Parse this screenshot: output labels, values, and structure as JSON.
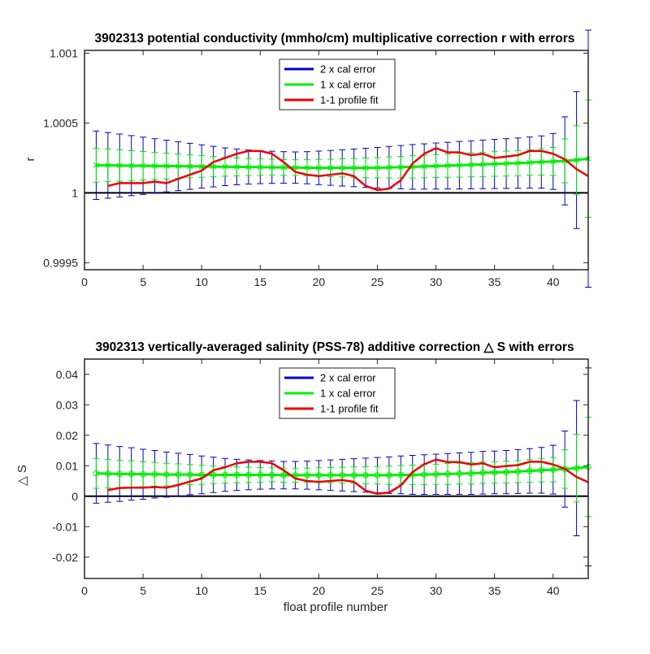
{
  "chart_data": [
    {
      "type": "line",
      "title": "3902313 potential conductivity (mmho/cm) multiplicative correction r with errors",
      "xlabel": "",
      "ylabel": "r",
      "xlim": [
        0,
        43
      ],
      "ylim": [
        0.99945,
        1.00102
      ],
      "xticks": [
        0,
        5,
        10,
        15,
        20,
        25,
        30,
        35,
        40
      ],
      "yticks": [
        0.9995,
        1,
        1.0005,
        1.001
      ],
      "ytick_labels": [
        "0.9995",
        "1",
        "1.0005",
        "1.001"
      ],
      "reference_line": 1,
      "legend_position": "top-center",
      "colors": {
        "cal2": "#0000cc",
        "cal1": "#00ee00",
        "fit": "#ee0000",
        "ref": "#000000"
      },
      "x": [
        1,
        2,
        3,
        4,
        5,
        6,
        7,
        8,
        9,
        10,
        11,
        12,
        13,
        14,
        15,
        16,
        17,
        18,
        19,
        20,
        21,
        22,
        23,
        24,
        25,
        26,
        27,
        28,
        29,
        30,
        31,
        32,
        33,
        34,
        35,
        36,
        37,
        38,
        39,
        40,
        41,
        42,
        43
      ],
      "series": [
        {
          "name": "2 x cal error",
          "center": [
            1.000198,
            1.000197,
            1.000196,
            1.000195,
            1.000194,
            1.000193,
            1.000192,
            1.000191,
            1.00019,
            1.000189,
            1.000188,
            1.000187,
            1.000186,
            1.000185,
            1.000184,
            1.000183,
            1.000182,
            1.000181,
            1.00018,
            1.000179,
            1.000179,
            1.000179,
            1.000179,
            1.000179,
            1.00018,
            1.000182,
            1.000184,
            1.000186,
            1.000189,
            1.000192,
            1.000195,
            1.000198,
            1.000201,
            1.000204,
            1.000207,
            1.00021,
            1.000213,
            1.000217,
            1.000221,
            1.000225,
            1.000229,
            1.000235,
            1.000245
          ],
          "error": [
            0.000245,
            0.000235,
            0.000225,
            0.000215,
            0.000205,
            0.000195,
            0.000185,
            0.000175,
            0.000165,
            0.000155,
            0.000145,
            0.000135,
            0.000128,
            0.000122,
            0.000118,
            0.000115,
            0.000113,
            0.000112,
            0.000115,
            0.00012,
            0.000125,
            0.00013,
            0.000135,
            0.00014,
            0.000145,
            0.00015,
            0.000155,
            0.00016,
            0.000162,
            0.000165,
            0.000167,
            0.00017,
            0.000172,
            0.000174,
            0.000176,
            0.000178,
            0.00018,
            0.000183,
            0.000187,
            0.0002,
            0.000315,
            0.00049,
            0.00092
          ]
        },
        {
          "name": "1 x cal error",
          "values": [
            1.000198,
            1.000197,
            1.000196,
            1.000195,
            1.000194,
            1.000193,
            1.000192,
            1.000191,
            1.00019,
            1.000189,
            1.000188,
            1.000187,
            1.000186,
            1.000185,
            1.000184,
            1.000183,
            1.000182,
            1.000181,
            1.00018,
            1.000179,
            1.000179,
            1.000179,
            1.000179,
            1.000179,
            1.00018,
            1.000182,
            1.000184,
            1.000186,
            1.000189,
            1.000192,
            1.000195,
            1.000198,
            1.000201,
            1.000204,
            1.000207,
            1.00021,
            1.000213,
            1.000217,
            1.000221,
            1.000225,
            1.000229,
            1.000235,
            1.000245
          ],
          "error": [
            0.000122,
            0.000117,
            0.000112,
            0.000107,
            0.000102,
            9.7e-05,
            9.2e-05,
            8.7e-05,
            8.2e-05,
            7.7e-05,
            7.2e-05,
            6.7e-05,
            6.4e-05,
            6.1e-05,
            5.9e-05,
            5.7e-05,
            5.6e-05,
            5.6e-05,
            5.7e-05,
            6e-05,
            6.2e-05,
            6.5e-05,
            6.7e-05,
            7e-05,
            7.2e-05,
            7.5e-05,
            7.7e-05,
            8e-05,
            8.1e-05,
            8.2e-05,
            8.3e-05,
            8.5e-05,
            8.6e-05,
            8.7e-05,
            8.8e-05,
            8.9e-05,
            9e-05,
            9.1e-05,
            9.3e-05,
            0.0001,
            0.000157,
            0.000245,
            0.00042
          ]
        },
        {
          "name": "1-1 profile fit",
          "x": [
            2,
            3,
            4,
            5,
            6,
            7,
            8,
            9,
            10,
            11,
            12,
            13,
            14,
            15,
            16,
            17,
            18,
            19,
            20,
            21,
            22,
            23,
            24,
            25,
            26,
            27,
            28,
            29,
            30,
            31,
            32,
            33,
            34,
            35,
            36,
            37,
            38,
            39,
            40,
            41,
            42,
            43
          ],
          "values": [
            1.00005,
            1.00007,
            1.00007,
            1.00007,
            1.00008,
            1.00007,
            1.0001,
            1.00013,
            1.00016,
            1.00022,
            1.00025,
            1.00028,
            1.0003,
            1.0003,
            1.00028,
            1.00022,
            1.00015,
            1.00013,
            1.00012,
            1.00013,
            1.00014,
            1.00012,
            1.00005,
            1.00002,
            1.00003,
            1.00009,
            1.00021,
            1.00028,
            1.00032,
            1.00029,
            1.00029,
            1.00027,
            1.00028,
            1.00025,
            1.00026,
            1.00027,
            1.0003,
            1.0003,
            1.00028,
            1.00024,
            1.00017,
            1.00012
          ]
        }
      ]
    },
    {
      "type": "line",
      "title": "3902313 vertically-averaged salinity (PSS-78) additive correction △ S with errors",
      "xlabel": "float profile number",
      "ylabel": "△ S",
      "xlim": [
        0,
        43
      ],
      "ylim": [
        -0.027,
        0.045
      ],
      "xticks": [
        0,
        5,
        10,
        15,
        20,
        25,
        30,
        35,
        40
      ],
      "yticks": [
        -0.02,
        -0.01,
        0,
        0.01,
        0.02,
        0.03,
        0.04
      ],
      "ytick_labels": [
        "-0.02",
        "-0.01",
        "0",
        "0.01",
        "0.02",
        "0.03",
        "0.04"
      ],
      "reference_line": 0,
      "legend_position": "top-center",
      "colors": {
        "cal2": "#0000cc",
        "cal1": "#00ee00",
        "fit": "#ee0000",
        "ref": "#000000"
      },
      "x": [
        1,
        2,
        3,
        4,
        5,
        6,
        7,
        8,
        9,
        10,
        11,
        12,
        13,
        14,
        15,
        16,
        17,
        18,
        19,
        20,
        21,
        22,
        23,
        24,
        25,
        26,
        27,
        28,
        29,
        30,
        31,
        32,
        33,
        34,
        35,
        36,
        37,
        38,
        39,
        40,
        41,
        42,
        43
      ],
      "series": [
        {
          "name": "2 x cal error",
          "center": [
            0.0075,
            0.0074,
            0.0073,
            0.0073,
            0.0072,
            0.0072,
            0.0071,
            0.0071,
            0.0071,
            0.007,
            0.007,
            0.007,
            0.007,
            0.007,
            0.007,
            0.007,
            0.0069,
            0.0069,
            0.0069,
            0.0069,
            0.0069,
            0.0069,
            0.0069,
            0.0069,
            0.0069,
            0.0069,
            0.007,
            0.007,
            0.0071,
            0.0072,
            0.0073,
            0.0074,
            0.0075,
            0.0077,
            0.0078,
            0.0079,
            0.0081,
            0.0083,
            0.0085,
            0.0087,
            0.0089,
            0.0092,
            0.0096
          ],
          "error": [
            0.0098,
            0.0094,
            0.009,
            0.0086,
            0.0082,
            0.0078,
            0.0074,
            0.007,
            0.0066,
            0.0062,
            0.0058,
            0.0054,
            0.0051,
            0.0049,
            0.0047,
            0.0046,
            0.0045,
            0.0045,
            0.0046,
            0.0048,
            0.005,
            0.0052,
            0.0054,
            0.0056,
            0.0058,
            0.006,
            0.0062,
            0.0064,
            0.0065,
            0.0066,
            0.0067,
            0.0068,
            0.0069,
            0.007,
            0.007,
            0.0071,
            0.0072,
            0.0073,
            0.0075,
            0.008,
            0.0125,
            0.0222,
            0.0325
          ]
        },
        {
          "name": "1 x cal error",
          "values": [
            0.0075,
            0.0074,
            0.0073,
            0.0073,
            0.0072,
            0.0072,
            0.0071,
            0.0071,
            0.0071,
            0.007,
            0.007,
            0.007,
            0.007,
            0.007,
            0.007,
            0.007,
            0.0069,
            0.0069,
            0.0069,
            0.0069,
            0.0069,
            0.0069,
            0.0069,
            0.0069,
            0.0069,
            0.0069,
            0.007,
            0.007,
            0.0071,
            0.0072,
            0.0073,
            0.0074,
            0.0075,
            0.0077,
            0.0078,
            0.0079,
            0.0081,
            0.0083,
            0.0085,
            0.0087,
            0.0089,
            0.0092,
            0.0096
          ],
          "error": [
            0.0049,
            0.0047,
            0.0045,
            0.0043,
            0.0041,
            0.0039,
            0.0037,
            0.0035,
            0.0033,
            0.0031,
            0.0029,
            0.0027,
            0.0026,
            0.0025,
            0.0024,
            0.0023,
            0.0023,
            0.0023,
            0.0023,
            0.0024,
            0.0025,
            0.0026,
            0.0027,
            0.0028,
            0.0029,
            0.003,
            0.0031,
            0.0032,
            0.0033,
            0.0033,
            0.0034,
            0.0034,
            0.0035,
            0.0035,
            0.0035,
            0.0036,
            0.0036,
            0.0037,
            0.0038,
            0.004,
            0.0063,
            0.0111,
            0.0163
          ]
        },
        {
          "name": "1-1 profile fit",
          "x": [
            2,
            3,
            4,
            5,
            6,
            7,
            8,
            9,
            10,
            11,
            12,
            13,
            14,
            15,
            16,
            17,
            18,
            19,
            20,
            21,
            22,
            23,
            24,
            25,
            26,
            27,
            28,
            29,
            30,
            31,
            32,
            33,
            34,
            35,
            36,
            37,
            38,
            39,
            40,
            41,
            42,
            43
          ],
          "values": [
            0.002,
            0.0027,
            0.0028,
            0.0028,
            0.003,
            0.0028,
            0.0037,
            0.0048,
            0.0058,
            0.0085,
            0.0095,
            0.0108,
            0.0113,
            0.0113,
            0.0108,
            0.0085,
            0.0058,
            0.005,
            0.0047,
            0.005,
            0.0053,
            0.0047,
            0.0018,
            0.0008,
            0.0012,
            0.0035,
            0.0079,
            0.0105,
            0.012,
            0.0112,
            0.0112,
            0.0104,
            0.0108,
            0.0095,
            0.0099,
            0.0102,
            0.0113,
            0.0113,
            0.0104,
            0.009,
            0.0063,
            0.0046
          ]
        }
      ]
    }
  ]
}
